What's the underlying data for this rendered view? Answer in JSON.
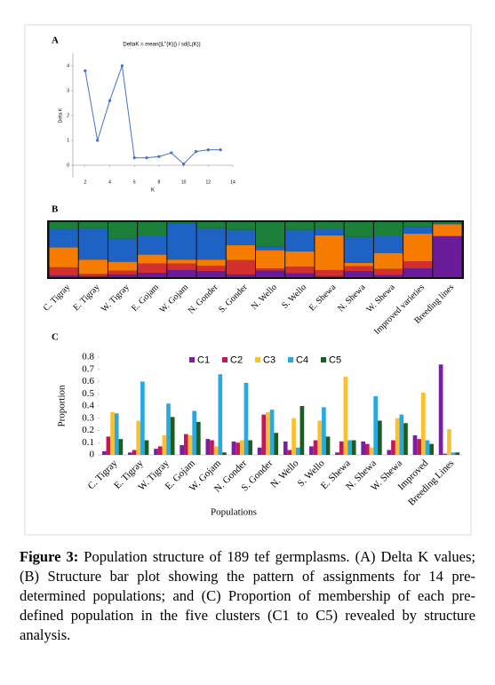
{
  "chart_data": [
    {
      "type": "line",
      "panel_label": "A",
      "title": "DeltaK = mean(|L''(K)|) / sd(L(K))",
      "x_label": "K",
      "y_label": "Delta K",
      "x": [
        2,
        3,
        4,
        5,
        6,
        7,
        8,
        9,
        10,
        11,
        12,
        13
      ],
      "values": [
        3.8,
        1.0,
        2.6,
        4.0,
        0.3,
        0.3,
        0.35,
        0.5,
        0.05,
        0.55,
        0.62,
        0.62
      ],
      "color": "#4472c4",
      "xlim": [
        1,
        14
      ],
      "xticks": [
        2,
        4,
        6,
        8,
        10,
        12,
        14
      ],
      "ylim": [
        -0.5,
        4.5
      ],
      "yticks": [
        0,
        1,
        2,
        3,
        4
      ]
    },
    {
      "type": "stacked_bar",
      "panel_label": "B",
      "categories": [
        "C. Tigray",
        "E. Tigray",
        "W. Tigray",
        "E. Gojam",
        "W. Gojam",
        "N. Gonder",
        "S. Gonder",
        "N. Wello",
        "S. Wello",
        "E. Shewa",
        "N. Shewa",
        "W. Shewa",
        "Improved varieties",
        "Breeding lines"
      ],
      "series": [
        {
          "color": "#6a1b9a",
          "values": [
            0.03,
            0.02,
            0.05,
            0.08,
            0.13,
            0.11,
            0.05,
            0.12,
            0.07,
            0.02,
            0.11,
            0.04,
            0.16,
            0.74
          ]
        },
        {
          "color": "#d32f2f",
          "values": [
            0.15,
            0.04,
            0.07,
            0.17,
            0.12,
            0.1,
            0.26,
            0.04,
            0.12,
            0.11,
            0.09,
            0.11,
            0.13,
            0.01
          ]
        },
        {
          "color": "#f57c00",
          "values": [
            0.36,
            0.26,
            0.16,
            0.16,
            0.07,
            0.11,
            0.27,
            0.33,
            0.28,
            0.63,
            0.06,
            0.29,
            0.5,
            0.21
          ]
        },
        {
          "color": "#1e63c4",
          "values": [
            0.33,
            0.57,
            0.42,
            0.34,
            0.66,
            0.57,
            0.28,
            0.07,
            0.39,
            0.12,
            0.47,
            0.31,
            0.12,
            0.02
          ]
        },
        {
          "color": "#1b7f3a",
          "values": [
            0.13,
            0.11,
            0.3,
            0.25,
            0.02,
            0.11,
            0.14,
            0.44,
            0.14,
            0.12,
            0.27,
            0.25,
            0.09,
            0.02
          ]
        }
      ],
      "ylim": [
        0,
        1
      ]
    },
    {
      "type": "bar",
      "panel_label": "C",
      "x_label": "Populations",
      "y_label": "Proportion",
      "categories": [
        "C. Tigray",
        "E. Tigray",
        "W. Tigray",
        "E. Gojam",
        "W. Gojam",
        "N. Gonder",
        "S. Gonder",
        "N. Wello",
        "S. Wello",
        "E. Shewa",
        "N. Shewa",
        "W. Shewa",
        "Improved",
        "Breeding Lines"
      ],
      "series": [
        {
          "name": "C1",
          "color": "#7b1fa2",
          "values": [
            0.03,
            0.02,
            0.05,
            0.08,
            0.13,
            0.11,
            0.06,
            0.11,
            0.07,
            0.02,
            0.11,
            0.04,
            0.16,
            0.74
          ]
        },
        {
          "name": "C2",
          "color": "#c2185b",
          "values": [
            0.15,
            0.04,
            0.07,
            0.17,
            0.12,
            0.1,
            0.33,
            0.04,
            0.12,
            0.11,
            0.09,
            0.12,
            0.13,
            0.01
          ]
        },
        {
          "name": "C3",
          "color": "#fbc02d",
          "values": [
            0.35,
            0.28,
            0.16,
            0.16,
            0.07,
            0.12,
            0.35,
            0.3,
            0.28,
            0.64,
            0.06,
            0.3,
            0.51,
            0.21
          ]
        },
        {
          "name": "C4",
          "color": "#29a9e1",
          "values": [
            0.34,
            0.6,
            0.42,
            0.36,
            0.66,
            0.59,
            0.37,
            0.06,
            0.39,
            0.12,
            0.48,
            0.33,
            0.12,
            0.02
          ]
        },
        {
          "name": "C5",
          "color": "#1b5e20",
          "values": [
            0.13,
            0.12,
            0.31,
            0.27,
            0.02,
            0.12,
            0.18,
            0.4,
            0.15,
            0.12,
            0.28,
            0.26,
            0.09,
            0.02
          ]
        }
      ],
      "ylim": [
        0,
        0.8
      ],
      "yticks": [
        0,
        0.1,
        0.2,
        0.3,
        0.4,
        0.5,
        0.6,
        0.7,
        0.8
      ]
    }
  ],
  "caption": {
    "label": "Figure 3:",
    "text": "Population structure of 189 tef germplasms. (A) Delta K values; (B) Structure bar plot showing the pattern of assignments for 14 pre-determined populations; and (C) Proportion of membership of each pre-defined population in the five clusters (C1 to C5) revealed by structure analysis."
  }
}
